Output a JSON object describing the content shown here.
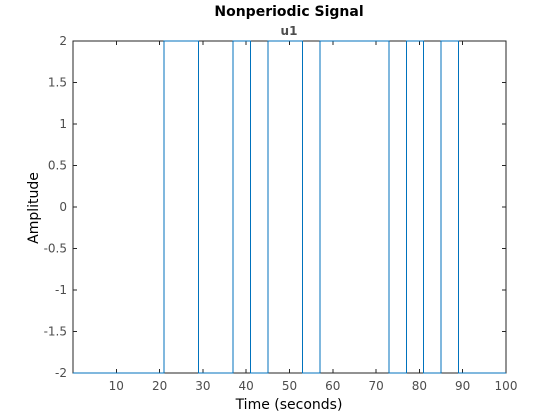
{
  "chart_data": {
    "type": "line",
    "title": "Nonperiodic Signal",
    "subtitle": "u1",
    "xlabel": "Time (seconds)",
    "ylabel": "Amplitude",
    "xlim": [
      0,
      100
    ],
    "ylim": [
      -2,
      2
    ],
    "xticks": [
      10,
      20,
      30,
      40,
      50,
      60,
      70,
      80,
      90,
      100
    ],
    "xtick_labels": [
      "10",
      "20",
      "30",
      "40",
      "50",
      "60",
      "70",
      "80",
      "90",
      "100"
    ],
    "yticks": [
      2,
      1.5,
      1,
      0.5,
      0,
      -0.5,
      -1,
      -1.5,
      -2
    ],
    "ytick_labels": [
      "2",
      "1.5",
      "1",
      "0.5",
      "0",
      "-0.5",
      "-1",
      "-1.5",
      "-2"
    ],
    "grid": false,
    "series": [
      {
        "color": "#0072bd",
        "step": true,
        "x": [
          0,
          21,
          29,
          37,
          41,
          45,
          53,
          57,
          73,
          77,
          81,
          85,
          89,
          100
        ],
        "y": [
          -2,
          2,
          -2,
          2,
          -2,
          2,
          -2,
          2,
          -2,
          2,
          -2,
          2,
          -2,
          -2
        ]
      }
    ]
  },
  "colors": {
    "axis": "#262626",
    "tick_text": "#4d4d4d",
    "signal": "#0072bd"
  }
}
